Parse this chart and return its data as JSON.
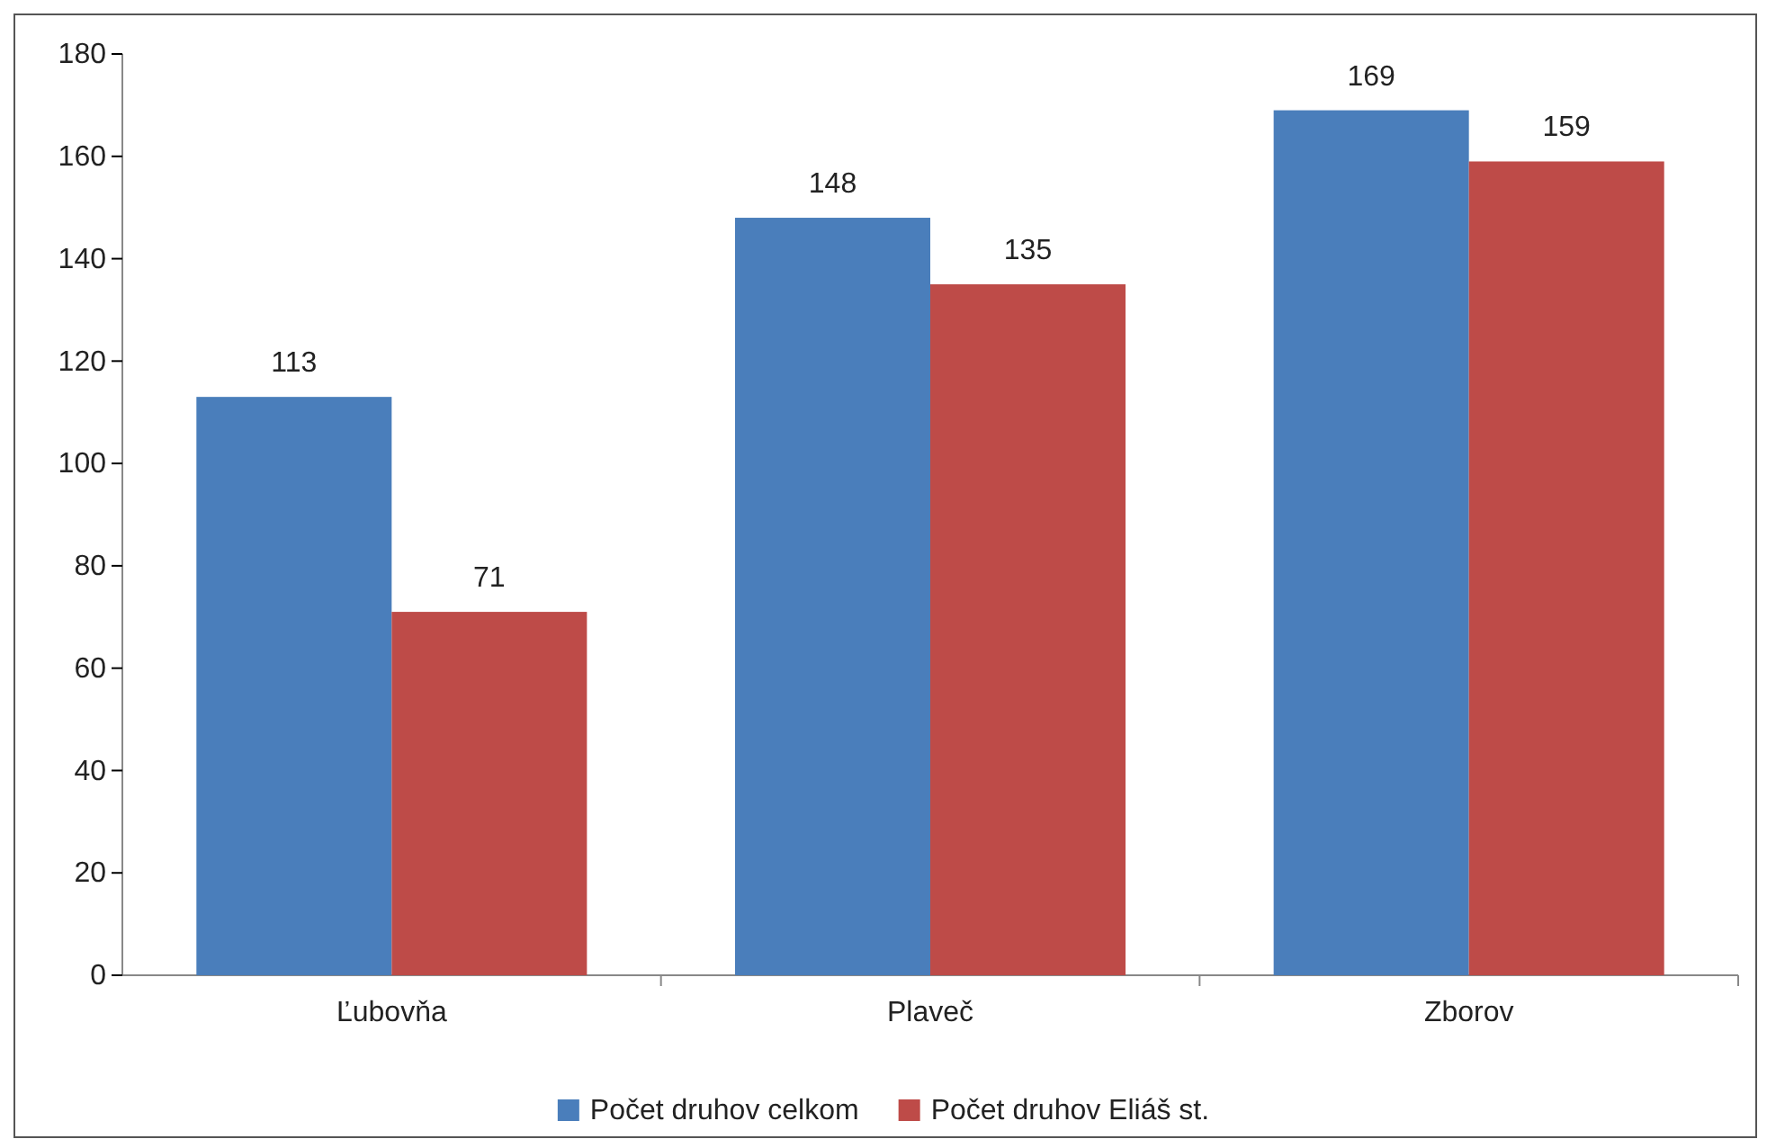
{
  "chart_data": {
    "type": "bar",
    "categories": [
      "Ľubovňa",
      "Plaveč",
      "Zborov"
    ],
    "series": [
      {
        "name": "Počet druhov celkom",
        "color": "#4a7ebb",
        "values": [
          113,
          148,
          169
        ]
      },
      {
        "name": "Počet druhov Eliáš st.",
        "color": "#be4b48",
        "values": [
          71,
          135,
          159
        ]
      }
    ],
    "ylim": [
      0,
      180
    ],
    "yticks": [
      0,
      20,
      40,
      60,
      80,
      100,
      120,
      140,
      160,
      180
    ],
    "grid": false,
    "legend": "bottom",
    "data_labels": true
  }
}
